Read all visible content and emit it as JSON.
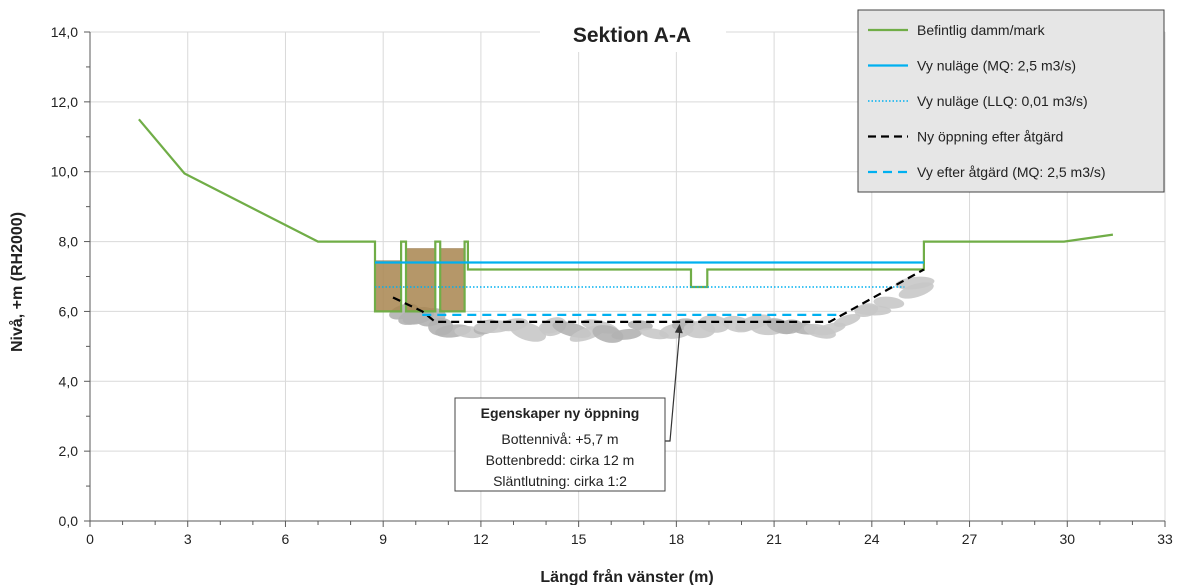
{
  "chart_data": {
    "type": "line",
    "title": "Sektion A-A",
    "xlabel": "Längd från vänster (m)",
    "ylabel": "Nivå, +m (RH2000)",
    "xlim": [
      0,
      33
    ],
    "ylim": [
      0,
      14
    ],
    "x_ticks": [
      "0",
      "3",
      "6",
      "9",
      "12",
      "15",
      "18",
      "21",
      "24",
      "27",
      "30",
      "33"
    ],
    "y_ticks": [
      "0,0",
      "2,0",
      "4,0",
      "6,0",
      "8,0",
      "10,0",
      "12,0",
      "14,0"
    ],
    "grid": true,
    "legend_position": "top-right",
    "series": [
      {
        "name": "Befintlig damm/mark",
        "color": "#70ad47",
        "style": "solid",
        "points": [
          [
            1.5,
            11.5
          ],
          [
            2.9,
            9.95
          ],
          [
            7.0,
            8.0
          ],
          [
            8.75,
            8.0
          ],
          [
            8.75,
            6.0
          ],
          [
            9.55,
            6.0
          ],
          [
            9.55,
            8.0
          ],
          [
            9.7,
            8.0
          ],
          [
            9.7,
            6.0
          ],
          [
            10.6,
            6.0
          ],
          [
            10.6,
            8.0
          ],
          [
            10.75,
            8.0
          ],
          [
            10.75,
            6.0
          ],
          [
            11.5,
            6.0
          ],
          [
            11.5,
            8.0
          ],
          [
            11.6,
            8.0
          ],
          [
            11.6,
            7.2
          ],
          [
            18.45,
            7.2
          ],
          [
            18.45,
            6.7
          ],
          [
            18.95,
            6.7
          ],
          [
            18.95,
            7.2
          ],
          [
            25.6,
            7.2
          ],
          [
            25.6,
            8.0
          ],
          [
            29.9,
            8.0
          ],
          [
            31.4,
            8.2
          ]
        ]
      },
      {
        "name": "Vy nuläge (MQ: 2,5 m3/s)",
        "color": "#00b0f0",
        "style": "solid",
        "points": [
          [
            8.75,
            7.4
          ],
          [
            25.6,
            7.4
          ]
        ]
      },
      {
        "name": "Vy nuläge (LLQ: 0,01 m3/s)",
        "color": "#00b0f0",
        "style": "dotted",
        "points": [
          [
            8.75,
            6.7
          ],
          [
            25.0,
            6.7
          ]
        ]
      },
      {
        "name": "Ny öppning efter åtgärd",
        "color": "#000000",
        "style": "dashed",
        "points": [
          [
            9.3,
            6.4
          ],
          [
            10.2,
            6.0
          ],
          [
            10.6,
            5.7
          ],
          [
            22.7,
            5.7
          ],
          [
            25.6,
            7.2
          ]
        ]
      },
      {
        "name": "Vy efter åtgärd (MQ: 2,5 m3/s)",
        "color": "#00b0f0",
        "style": "dashed",
        "points": [
          [
            10.2,
            5.9
          ],
          [
            23.0,
            5.9
          ]
        ]
      }
    ],
    "dam_blocks": [
      {
        "x0": 8.75,
        "x1": 9.55,
        "y0": 6.0,
        "y1": 7.45
      },
      {
        "x0": 9.7,
        "x1": 10.6,
        "y0": 6.0,
        "y1": 7.8
      },
      {
        "x0": 10.75,
        "x1": 11.5,
        "y0": 6.0,
        "y1": 7.8
      }
    ],
    "annotation": {
      "title": "Egenskaper ny öppning",
      "lines": [
        "Bottennivå: +5,7 m",
        "Bottenbredd: cirka 12 m",
        "Släntlutning: cirka 1:2"
      ],
      "arrow_target": [
        18.1,
        5.7
      ]
    }
  },
  "colors": {
    "ground": "#70ad47",
    "water": "#00b0f0",
    "dam": "#a8854f",
    "stone": "#c8c8c8",
    "legend_bg": "#e6e6e6",
    "grid": "#d9d9d9"
  }
}
